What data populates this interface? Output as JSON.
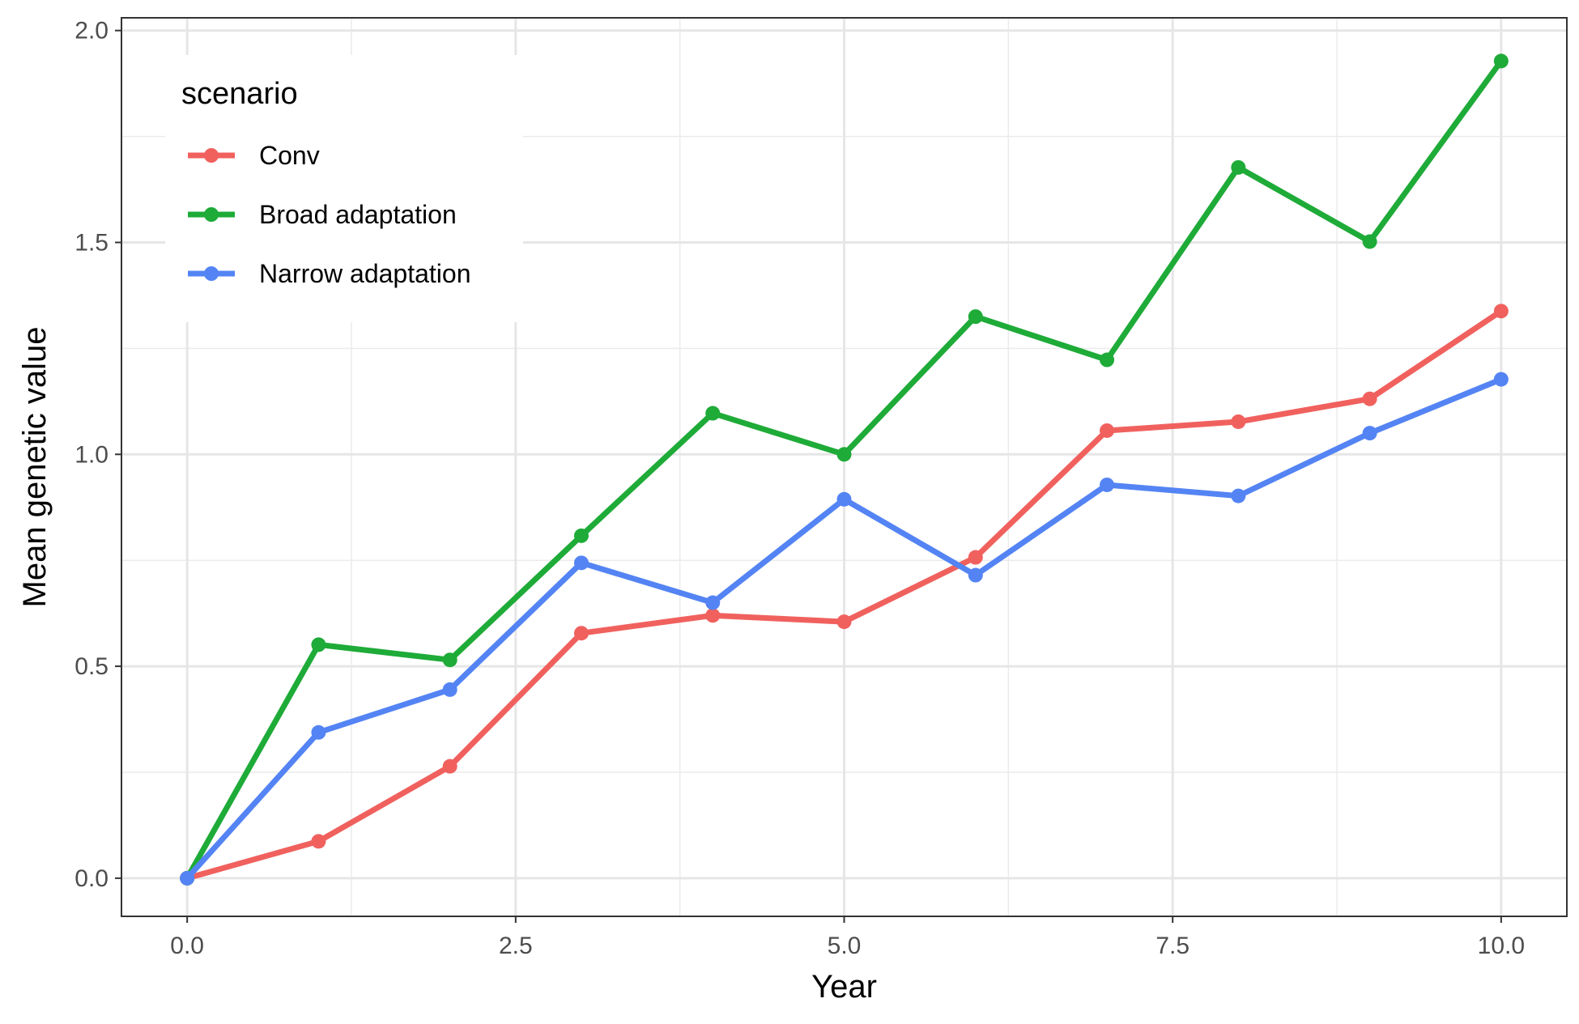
{
  "chart_data": {
    "type": "line",
    "xlabel": "Year",
    "ylabel": "Mean genetic value",
    "xlim": [
      -0.5,
      10.5
    ],
    "ylim": [
      -0.09,
      2.03
    ],
    "x_ticks": [
      "0.0",
      "2.5",
      "5.0",
      "7.5",
      "10.0"
    ],
    "y_ticks": [
      "0.0",
      "0.5",
      "1.0",
      "1.5",
      "2.0"
    ],
    "grid": true,
    "legend": {
      "title": "scenario",
      "position": "top-left"
    },
    "x": [
      0,
      1,
      2,
      3,
      4,
      5,
      6,
      7,
      8,
      9,
      10
    ],
    "series": [
      {
        "name": "Conv",
        "color": "#F0615E",
        "values": [
          0.0,
          0.087,
          0.264,
          0.578,
          0.62,
          0.605,
          0.757,
          1.056,
          1.077,
          1.131,
          1.338
        ]
      },
      {
        "name": "Broad adaptation",
        "color": "#1EAB38",
        "values": [
          0.0,
          0.551,
          0.515,
          0.808,
          1.097,
          1.0,
          1.325,
          1.223,
          1.677,
          1.502,
          1.928
        ]
      },
      {
        "name": "Narrow adaptation",
        "color": "#5484F4",
        "values": [
          0.0,
          0.344,
          0.445,
          0.744,
          0.65,
          0.894,
          0.715,
          0.928,
          0.902,
          1.05,
          1.177
        ]
      }
    ]
  }
}
